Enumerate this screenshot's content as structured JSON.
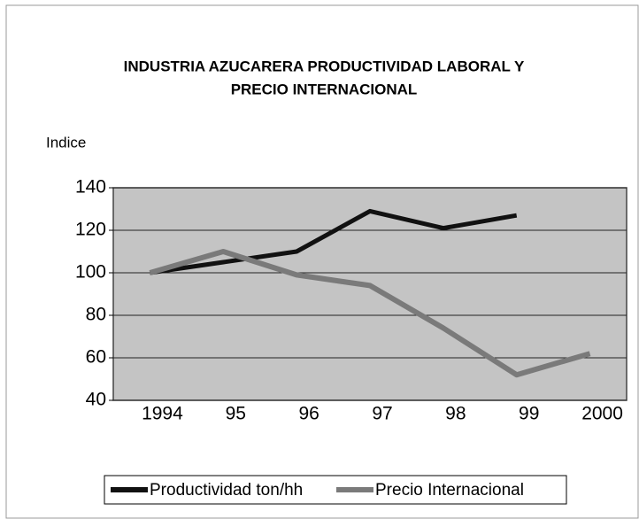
{
  "chart_data": {
    "type": "line",
    "title": [
      "INDUSTRIA AZUCARERA PRODUCTIVIDAD LABORAL Y",
      "PRECIO INTERNACIONAL"
    ],
    "y_axis_label": "Indice",
    "categories": [
      "1994",
      "95",
      "96",
      "97",
      "98",
      "99",
      "2000"
    ],
    "series": [
      {
        "name": "Productividad ton/hh",
        "color": "#111111",
        "values": [
          100,
          105,
          110,
          129,
          121,
          127,
          null
        ]
      },
      {
        "name": "Precio Internacional",
        "color": "#7a7a7a",
        "values": [
          100,
          110,
          99,
          94,
          74,
          52,
          62
        ]
      }
    ],
    "ylim": [
      40,
      140
    ],
    "yticks": [
      40,
      60,
      80,
      100,
      120,
      140
    ],
    "grid": true,
    "legend": "bottom"
  }
}
